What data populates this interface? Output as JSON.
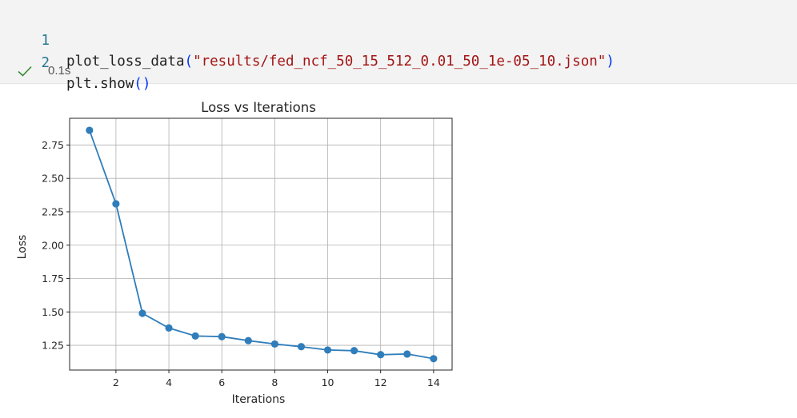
{
  "cell": {
    "lines": [
      {
        "num": "1",
        "func": "plot_loss_data",
        "open": "(",
        "str": "\"results/fed_ncf_50_15_512_0.01_50_1e-05_10.json\"",
        "close": ")"
      },
      {
        "num": "2",
        "func": "plt.show",
        "open": "(",
        "str": "",
        "close": ")"
      }
    ],
    "status": {
      "icon": "check-icon",
      "time": "0.1s",
      "color": "#388a34"
    }
  },
  "chart_data": {
    "type": "line",
    "title": "Loss vs Iterations",
    "xlabel": "Iterations",
    "ylabel": "Loss",
    "x": [
      1,
      2,
      3,
      4,
      5,
      6,
      7,
      8,
      9,
      10,
      11,
      12,
      13,
      14
    ],
    "series": [
      {
        "values": [
          2.86,
          2.31,
          1.49,
          1.38,
          1.32,
          1.315,
          1.285,
          1.26,
          1.24,
          1.215,
          1.21,
          1.18,
          1.185,
          1.15
        ],
        "color": "#2f7dba",
        "marker": "circle"
      }
    ],
    "xticks": [
      2,
      4,
      6,
      8,
      10,
      12,
      14
    ],
    "yticks": [
      1.25,
      1.5,
      1.75,
      2.0,
      2.25,
      2.5,
      2.75
    ],
    "ytick_labels": [
      "1.25",
      "1.50",
      "1.75",
      "2.00",
      "2.25",
      "2.50",
      "2.75"
    ],
    "xlim": [
      0.25,
      14.7
    ],
    "ylim": [
      1.065,
      2.95
    ],
    "grid": true,
    "legend": false
  }
}
